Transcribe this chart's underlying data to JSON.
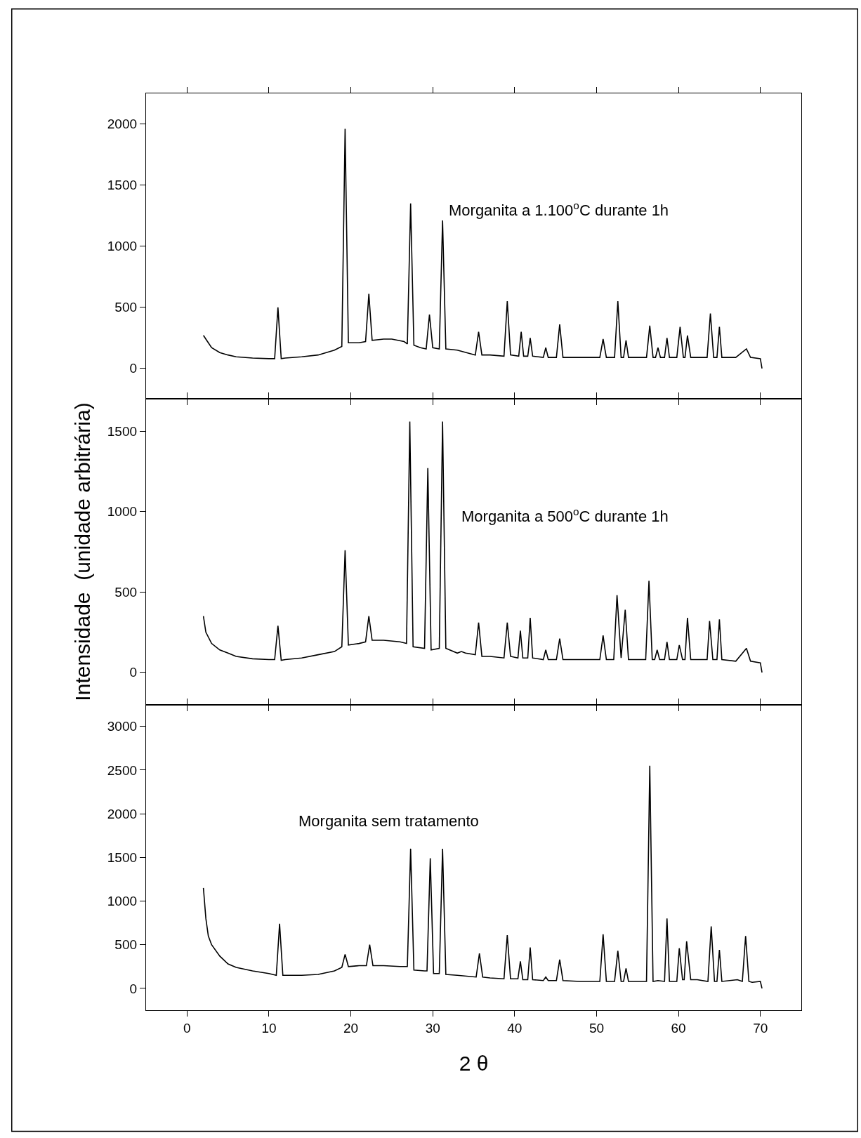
{
  "chart_data": [
    {
      "type": "line",
      "xlim": [
        -5,
        75
      ],
      "ylim": [
        -250,
        2250
      ],
      "yticks": [
        0,
        500,
        1000,
        1500,
        2000
      ],
      "tick_labels": "y",
      "grid": false,
      "legend": false,
      "marker": "none",
      "line_style": "solid",
      "series": [
        {
          "name": "Morganita a 1.100$^{o}$C durante 1h",
          "color": "#000000",
          "x": [
            2,
            2.5,
            3,
            4,
            5,
            6,
            8,
            10,
            10.7,
            11.1,
            11.5,
            12,
            14,
            16,
            18,
            18.9,
            19.3,
            19.7,
            21,
            21.8,
            22.2,
            22.6,
            24,
            25,
            26.5,
            26.9,
            27.3,
            27.7,
            28.5,
            29.2,
            29.6,
            30,
            30.8,
            31.2,
            31.6,
            33,
            35.2,
            35.6,
            36,
            37,
            38.7,
            39.1,
            39.5,
            40.5,
            40.8,
            41.1,
            41.6,
            41.9,
            42.2,
            43.5,
            43.8,
            44.1,
            45.1,
            45.5,
            45.9,
            48,
            50.4,
            50.8,
            51.2,
            52.2,
            52.6,
            53,
            53.3,
            53.6,
            53.9,
            56.1,
            56.5,
            56.9,
            57.2,
            57.5,
            57.8,
            58.3,
            58.6,
            58.9,
            59.8,
            60.2,
            60.6,
            60.8,
            61.1,
            61.5,
            63.5,
            63.9,
            64.3,
            64.7,
            65,
            65.3,
            67,
            68.3,
            68.8,
            70,
            70.2
          ],
          "values": [
            270,
            220,
            170,
            130,
            110,
            95,
            85,
            80,
            80,
            500,
            80,
            85,
            95,
            110,
            150,
            180,
            1960,
            210,
            210,
            220,
            610,
            230,
            240,
            240,
            220,
            200,
            1350,
            190,
            170,
            160,
            440,
            170,
            160,
            1210,
            160,
            150,
            110,
            300,
            110,
            110,
            100,
            550,
            110,
            100,
            300,
            100,
            100,
            250,
            100,
            90,
            170,
            90,
            90,
            360,
            90,
            90,
            90,
            240,
            90,
            90,
            550,
            90,
            90,
            230,
            90,
            90,
            350,
            90,
            90,
            170,
            90,
            90,
            250,
            90,
            90,
            340,
            90,
            90,
            270,
            90,
            90,
            450,
            90,
            90,
            340,
            90,
            90,
            160,
            90,
            80,
            0
          ]
        }
      ]
    },
    {
      "type": "line",
      "xlim": [
        -5,
        75
      ],
      "ylim": [
        -200,
        1700
      ],
      "yticks": [
        0,
        500,
        1000,
        1500
      ],
      "tick_labels": "y",
      "grid": false,
      "legend": false,
      "marker": "none",
      "line_style": "solid",
      "ylabel": "Intensidade  (unidade arbitrária)",
      "series": [
        {
          "name": "Morganita a 500$^{o}$C durante 1h",
          "color": "#000000",
          "x": [
            2,
            2.3,
            3,
            4,
            5,
            6,
            8,
            10,
            10.7,
            11.1,
            11.5,
            12,
            14,
            16,
            18,
            18.9,
            19.3,
            19.7,
            21,
            21.8,
            22.2,
            22.6,
            24,
            26,
            26.8,
            27.2,
            27.6,
            29,
            29.4,
            29.8,
            30.8,
            31.2,
            31.6,
            33,
            33.5,
            34,
            35.2,
            35.6,
            36,
            37,
            38.7,
            39.1,
            39.5,
            40.4,
            40.7,
            41,
            41.6,
            41.9,
            42.2,
            43.5,
            43.8,
            44.1,
            45.1,
            45.5,
            45.9,
            48,
            50.4,
            50.8,
            51.2,
            52.1,
            52.5,
            53,
            53.5,
            53.9,
            56,
            56.4,
            56.8,
            57.1,
            57.4,
            57.7,
            58.3,
            58.6,
            58.9,
            59.8,
            60.1,
            60.5,
            60.8,
            61.1,
            61.5,
            63.5,
            63.8,
            64.2,
            64.7,
            65,
            65.3,
            67,
            68.3,
            68.8,
            70,
            70.2
          ],
          "values": [
            350,
            250,
            180,
            140,
            120,
            100,
            85,
            80,
            80,
            290,
            75,
            80,
            90,
            110,
            130,
            160,
            760,
            170,
            180,
            190,
            350,
            200,
            200,
            190,
            180,
            1560,
            160,
            150,
            1270,
            140,
            150,
            1560,
            150,
            120,
            130,
            120,
            110,
            310,
            100,
            100,
            90,
            310,
            100,
            90,
            260,
            90,
            90,
            340,
            90,
            80,
            140,
            80,
            80,
            210,
            80,
            80,
            80,
            230,
            80,
            80,
            480,
            90,
            390,
            80,
            80,
            570,
            80,
            80,
            140,
            80,
            80,
            190,
            80,
            80,
            170,
            80,
            80,
            340,
            80,
            80,
            320,
            80,
            80,
            330,
            80,
            70,
            150,
            70,
            60,
            0
          ]
        }
      ]
    },
    {
      "type": "line",
      "xlim": [
        -5,
        75
      ],
      "ylim": [
        -250,
        3250
      ],
      "yticks": [
        0,
        500,
        1000,
        1500,
        2000,
        2500,
        3000
      ],
      "xticks": [
        0,
        10,
        20,
        30,
        40,
        50,
        60,
        70
      ],
      "grid": false,
      "legend": false,
      "marker": "none",
      "line_style": "solid",
      "xlabel": "2 θ",
      "series": [
        {
          "name": "Morganita sem tratamento",
          "color": "#000000",
          "x": [
            2,
            2.3,
            2.6,
            3,
            4,
            5,
            6,
            8,
            10,
            10.9,
            11.3,
            11.7,
            12,
            14,
            16,
            18,
            18.9,
            19.3,
            19.7,
            21,
            21.9,
            22.3,
            22.7,
            24,
            26,
            26.9,
            27.3,
            27.7,
            29,
            29.3,
            29.7,
            30.1,
            30.8,
            31.2,
            31.6,
            33,
            35.3,
            35.7,
            36.1,
            37,
            38.7,
            39.1,
            39.5,
            40.4,
            40.7,
            41,
            41.6,
            41.9,
            42.2,
            43.5,
            43.8,
            44.1,
            45.1,
            45.5,
            45.9,
            48,
            50.4,
            50.8,
            51.2,
            52.2,
            52.6,
            53,
            53.3,
            53.6,
            53.9,
            56.1,
            56.5,
            56.9,
            57.5,
            58.3,
            58.6,
            58.9,
            59.8,
            60.1,
            60.5,
            60.7,
            61,
            61.5,
            62.3,
            63.6,
            64,
            64.4,
            64.7,
            65,
            65.3,
            67.2,
            67.8,
            68.2,
            68.6,
            69,
            70,
            70.2
          ],
          "values": [
            1150,
            800,
            600,
            500,
            370,
            280,
            240,
            200,
            170,
            150,
            740,
            150,
            150,
            150,
            160,
            200,
            240,
            390,
            250,
            260,
            260,
            500,
            260,
            260,
            250,
            250,
            1600,
            210,
            200,
            200,
            1490,
            170,
            170,
            1600,
            160,
            150,
            130,
            400,
            130,
            120,
            110,
            610,
            110,
            110,
            310,
            100,
            100,
            470,
            100,
            90,
            130,
            90,
            90,
            330,
            90,
            80,
            80,
            620,
            80,
            80,
            430,
            80,
            80,
            230,
            80,
            80,
            2550,
            80,
            90,
            80,
            800,
            80,
            80,
            460,
            100,
            100,
            540,
            100,
            100,
            80,
            710,
            80,
            80,
            440,
            80,
            100,
            80,
            600,
            80,
            70,
            80,
            0
          ]
        }
      ]
    }
  ]
}
